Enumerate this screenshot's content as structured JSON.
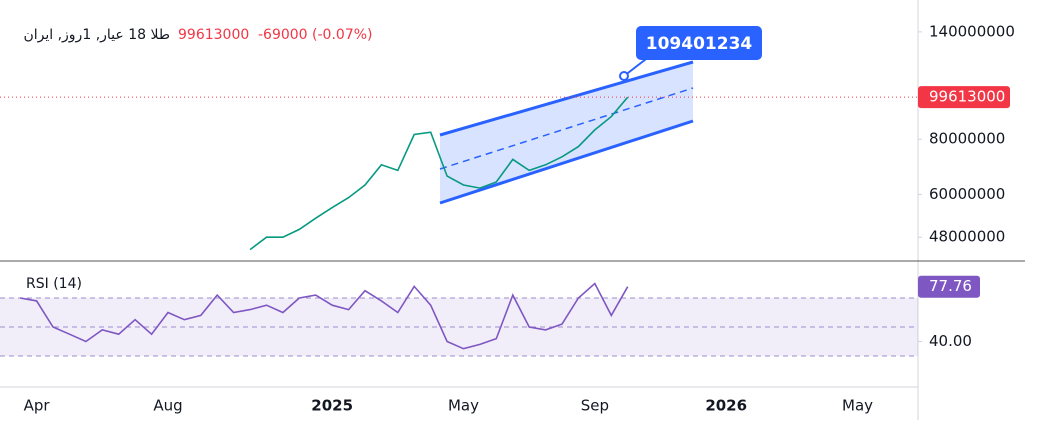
{
  "chart_data": [
    {
      "type": "line",
      "title": "طلا 18 عیار, 1روز, ایران",
      "change": "-69000 (-0.07%)",
      "color": "#089981",
      "last_color": "#f23645",
      "annotation": 109401234,
      "log_scale": true,
      "categories": [
        null,
        "Apr",
        null,
        null,
        null,
        null,
        null,
        null,
        null,
        "Aug",
        null,
        null,
        null,
        null,
        null,
        null,
        null,
        null,
        null,
        "2025",
        null,
        null,
        null,
        null,
        null,
        null,
        null,
        "May",
        null,
        null,
        null,
        null,
        null,
        null,
        null,
        "Sep",
        null,
        null,
        null,
        null,
        null,
        null,
        null,
        "2026",
        null,
        null,
        null,
        null,
        null,
        null,
        null,
        "May",
        null,
        null,
        null
      ],
      "values": [
        null,
        null,
        null,
        null,
        null,
        null,
        null,
        null,
        null,
        null,
        null,
        null,
        null,
        null,
        45000000,
        48000000,
        48000000,
        50000000,
        53000000,
        56000000,
        59000000,
        63000000,
        70000000,
        68000000,
        82000000,
        83000000,
        66000000,
        63000000,
        62000000,
        64000000,
        72000000,
        68000000,
        70000000,
        73000000,
        77000000,
        84000000,
        90000000,
        99613000,
        null,
        null,
        null,
        null,
        null,
        null,
        null,
        null,
        null,
        null,
        null,
        null,
        null,
        null,
        null,
        null,
        null
      ],
      "ylim": [
        42400000,
        155300000
      ],
      "yticks": [
        48000000,
        60000000,
        80000000,
        140000000
      ]
    },
    {
      "type": "line",
      "series": [
        {
          "name": "RSI (14)",
          "color": "#7e57c2",
          "values": [
            70,
            68,
            50,
            45,
            40,
            48,
            45,
            55,
            45,
            60,
            55,
            58,
            72,
            60,
            62,
            65,
            60,
            70,
            72,
            65,
            62,
            75,
            68,
            60,
            78,
            65,
            40,
            35,
            38,
            42,
            72,
            50,
            48,
            52,
            70,
            80,
            58,
            77.76,
            null,
            null,
            null,
            null,
            null,
            null,
            null,
            null,
            null,
            null,
            null,
            null,
            null,
            null,
            null,
            null,
            null
          ]
        }
      ],
      "ylim": [
        8.6,
        94.8
      ],
      "yticks": [
        {
          "value": 40,
          "label": "40.00"
        }
      ],
      "bands": [
        30,
        70
      ],
      "midline": 50
    }
  ]
}
